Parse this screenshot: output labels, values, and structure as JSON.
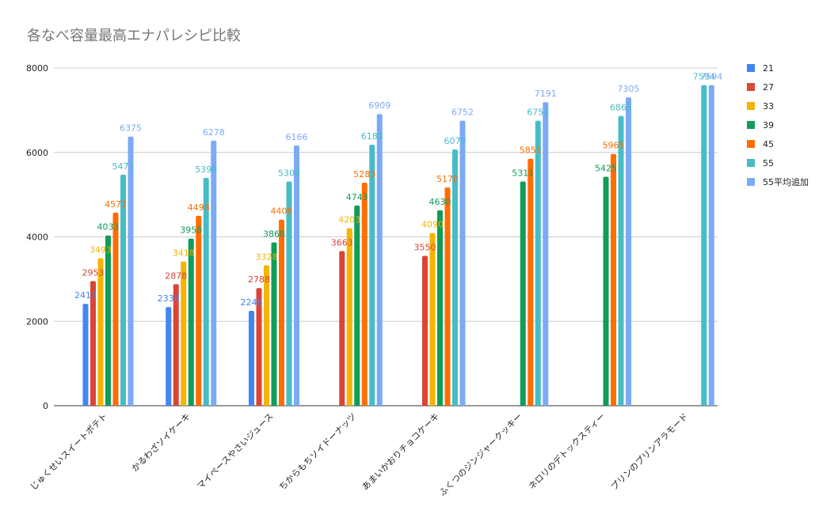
{
  "chart_data": {
    "type": "bar",
    "title": "各なべ容量最高エナパレシピ比較",
    "xlabel": "",
    "ylabel": "",
    "ylim": [
      0,
      8000
    ],
    "yticks": [
      0,
      2000,
      4000,
      6000,
      8000
    ],
    "categories": [
      "じゅくせいスイートポテト",
      "かるわざソイケーキ",
      "マイペースやさいジュース",
      "ちからもちソイドーナッツ",
      "あまいかおりチョコケーキ",
      "ふくつのジンジャークッキー",
      "ネロリのデトックスティー",
      "プリンのプリンアラモード"
    ],
    "series": [
      {
        "name": "21",
        "color": "#4285f4",
        "values": [
          2413,
          2338,
          2248,
          null,
          null,
          null,
          null,
          null
        ]
      },
      {
        "name": "27",
        "color": "#db4437",
        "values": [
          2953,
          2878,
          2788,
          3663,
          3550,
          null,
          null,
          null
        ]
      },
      {
        "name": "33",
        "color": "#f4b400",
        "values": [
          3493,
          3418,
          3328,
          4203,
          4090,
          null,
          null,
          null
        ]
      },
      {
        "name": "39",
        "color": "#0f9d58",
        "values": [
          4033,
          3958,
          3868,
          4743,
          4630,
          5311,
          5425,
          null
        ]
      },
      {
        "name": "45",
        "color": "#ff6d01",
        "values": [
          4573,
          4498,
          4408,
          5283,
          5170,
          5851,
          5965,
          null
        ]
      },
      {
        "name": "55",
        "color": "#46bdc6",
        "values": [
          5473,
          5398,
          5308,
          6183,
          6070,
          6751,
          6865,
          7594
        ]
      },
      {
        "name": "55平均追加",
        "color": "#7baaf7",
        "values": [
          6375,
          6278,
          6166,
          6909,
          6752,
          7191,
          7305,
          7594
        ]
      }
    ],
    "grid": true,
    "legend": "right"
  }
}
